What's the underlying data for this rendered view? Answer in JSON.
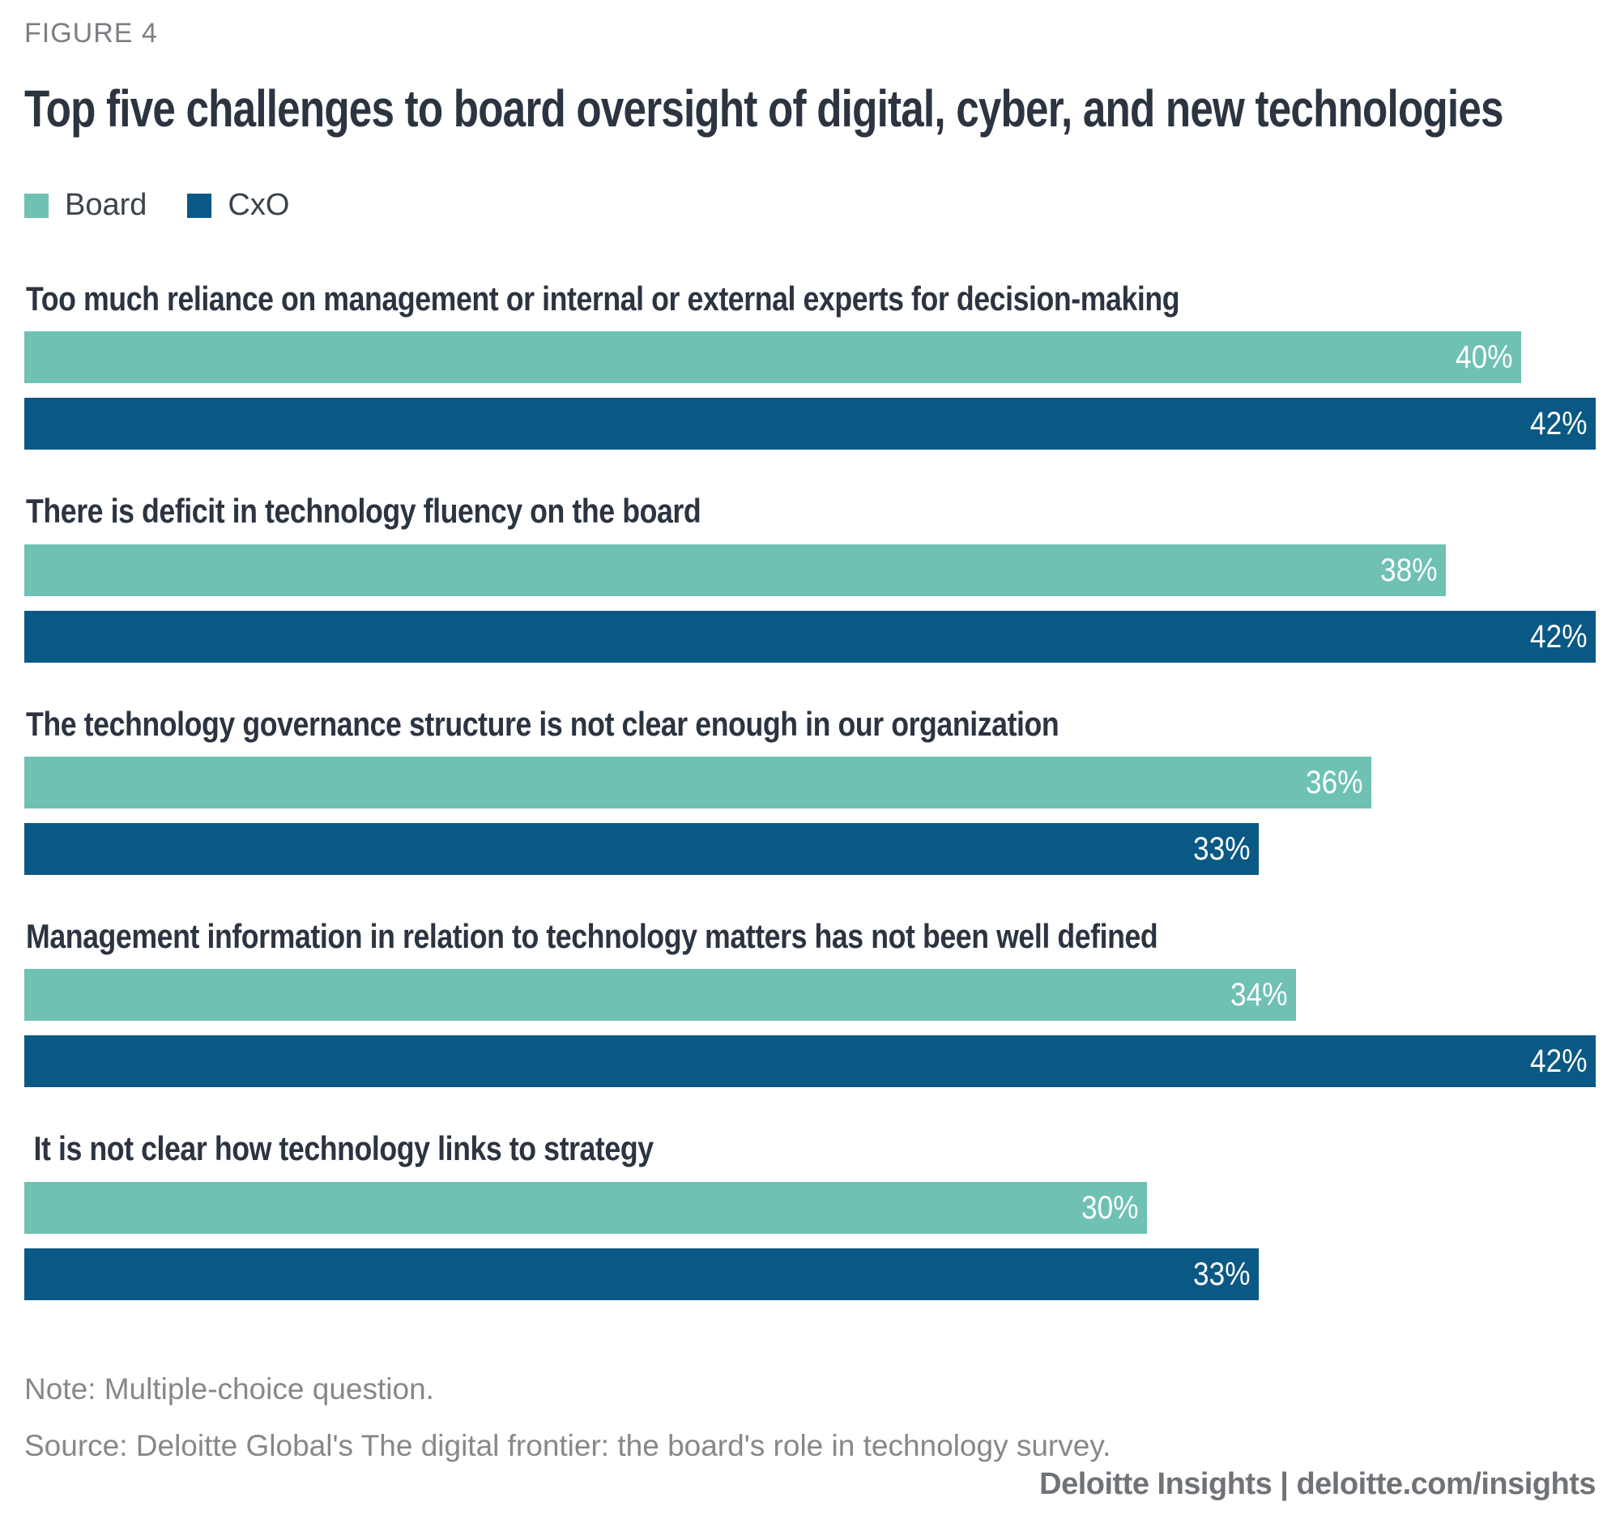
{
  "figure_label": "FIGURE 4",
  "title": "Top five challenges to board oversight of digital, cyber, and new technologies",
  "legend": [
    {
      "label": "Board",
      "color": "#6fc1b3"
    },
    {
      "label": "CxO",
      "color": "#0a5884"
    }
  ],
  "chart_data": {
    "type": "bar",
    "orientation": "horizontal",
    "value_axis_max": 42,
    "value_suffix": "%",
    "grid": false,
    "legend_position": "top-left",
    "categories": [
      "Too much reliance on management or internal or external experts for decision-making",
      "There is deficit in technology fluency on the board",
      "The technology governance structure is not clear enough in our organization",
      "Management information in relation to technology matters has not been well defined",
      " It is not clear how technology links to strategy"
    ],
    "series": [
      {
        "name": "Board",
        "color": "#6fc1b3",
        "values": [
          40,
          38,
          36,
          34,
          30
        ],
        "labels": [
          "40%",
          "38%",
          "36%",
          "34%",
          "30%"
        ]
      },
      {
        "name": "CxO",
        "color": "#0a5884",
        "values": [
          42,
          42,
          33,
          42,
          33
        ],
        "labels": [
          "42%",
          "42%",
          "33%",
          "42%",
          "33%"
        ]
      }
    ]
  },
  "note": "Note: Multiple-choice question.",
  "source": "Source: Deloitte Global's The digital frontier: the board's role in technology survey.",
  "footer": "Deloitte Insights | deloitte.com/insights",
  "colors": {
    "title_text": "#2b3440",
    "figure_label_text": "#7b7f83",
    "note_text": "#85888b",
    "footer_text": "#6f7377",
    "bar_value_text": "#ffffff",
    "background": "#ffffff"
  }
}
